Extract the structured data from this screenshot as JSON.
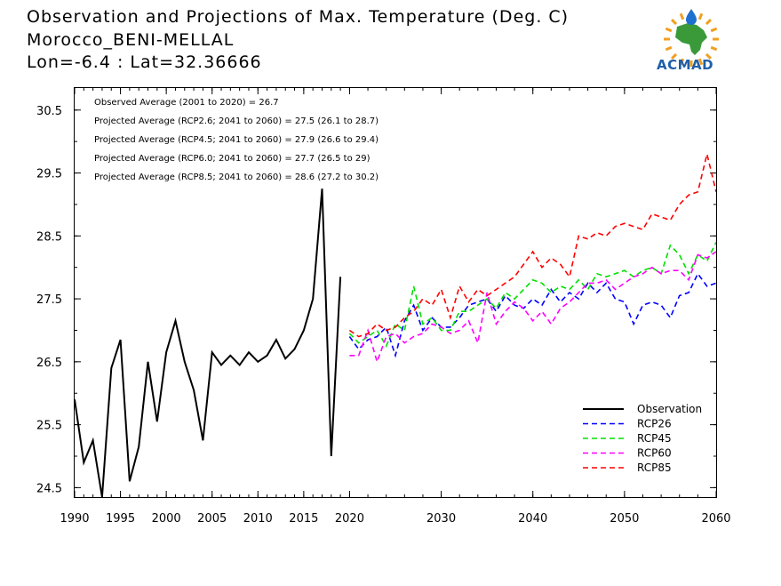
{
  "header": {
    "title_line1": "Observation and Projections of Max. Temperature (Deg. C)",
    "title_line2": "Morocco_BENI-MELLAL",
    "title_line3": "Lon=-6.4 : Lat=32.36666"
  },
  "logo": {
    "text": "ACMAD",
    "colors": {
      "africa": "#3a9a3a",
      "rays": "#f0a020",
      "drop": "#1f6fd0",
      "text": "#1f5fa8"
    }
  },
  "chart_data": {
    "type": "line",
    "xlim": [
      1990,
      2060
    ],
    "ylim": [
      24.35,
      30.85
    ],
    "x_ticks": [
      1990,
      1995,
      2000,
      2005,
      2010,
      2015,
      2020,
      2030,
      2040,
      2050,
      2060
    ],
    "y_ticks": [
      24.5,
      25.5,
      26.5,
      27.5,
      28.5,
      29.5,
      30.5
    ],
    "x_tick_labels": [
      "1990",
      "1995",
      "2000",
      "2005",
      "2010",
      "2015",
      "2020",
      "2030",
      "2040",
      "2050",
      "2060"
    ],
    "y_tick_labels": [
      "24.5",
      "25.5",
      "26.5",
      "27.5",
      "28.5",
      "29.5",
      "30.5"
    ],
    "annotations": [
      "Observed Average (2001 to 2020) = 26.7",
      "Projected Average (RCP2.6; 2041 to 2060) = 27.5 (26.1 to 28.7)",
      "Projected Average (RCP4.5; 2041 to 2060) = 27.9 (26.6 to 29.4)",
      "Projected Average (RCP6.0; 2041 to 2060) = 27.7 (26.5 to 29)",
      "Projected Average (RCP8.5; 2041 to 2060) = 28.6 (27.2 to 30.2)"
    ],
    "legend_position": "bottom-right",
    "series": [
      {
        "name": "Observation",
        "color": "#000000",
        "dash": "solid",
        "x": [
          1990,
          1991,
          1992,
          1993,
          1994,
          1995,
          1996,
          1997,
          1998,
          1999,
          2000,
          2001,
          2002,
          2003,
          2004,
          2005,
          2006,
          2007,
          2008,
          2009,
          2010,
          2011,
          2012,
          2013,
          2014,
          2015,
          2016,
          2017,
          2018,
          2019,
          2020
        ],
        "y": [
          25.9,
          24.9,
          25.25,
          24.35,
          26.4,
          26.85,
          24.6,
          25.15,
          26.5,
          25.55,
          26.65,
          27.15,
          26.5,
          26.05,
          25.25,
          26.65,
          26.45,
          26.6,
          26.45,
          26.65,
          26.5,
          26.6,
          26.85,
          26.55,
          26.7,
          27,
          27.5,
          29.25,
          25,
          27.85,
          null
        ]
      },
      {
        "name": "RCP26",
        "color": "#0000ff",
        "dash": "dashed",
        "x": [
          2020,
          2021,
          2022,
          2023,
          2024,
          2025,
          2026,
          2027,
          2028,
          2029,
          2030,
          2031,
          2032,
          2033,
          2034,
          2035,
          2036,
          2037,
          2038,
          2039,
          2040,
          2041,
          2042,
          2043,
          2044,
          2045,
          2046,
          2047,
          2048,
          2049,
          2050,
          2051,
          2052,
          2053,
          2054,
          2055,
          2056,
          2057,
          2058,
          2059,
          2060
        ],
        "y": [
          26.9,
          26.7,
          26.85,
          26.9,
          27.05,
          26.6,
          27.15,
          27.4,
          27.0,
          27.2,
          27.05,
          27.05,
          27.2,
          27.4,
          27.45,
          27.5,
          27.3,
          27.55,
          27.4,
          27.35,
          27.5,
          27.4,
          27.65,
          27.45,
          27.6,
          27.5,
          27.75,
          27.6,
          27.75,
          27.5,
          27.45,
          27.1,
          27.4,
          27.45,
          27.4,
          27.2,
          27.55,
          27.6,
          27.9,
          27.7,
          27.75
        ]
      },
      {
        "name": "RCP45",
        "color": "#00e000",
        "dash": "dashed",
        "x": [
          2020,
          2021,
          2022,
          2023,
          2024,
          2025,
          2026,
          2027,
          2028,
          2029,
          2030,
          2031,
          2032,
          2033,
          2034,
          2035,
          2036,
          2037,
          2038,
          2039,
          2040,
          2041,
          2042,
          2043,
          2044,
          2045,
          2046,
          2047,
          2048,
          2049,
          2050,
          2051,
          2052,
          2053,
          2054,
          2055,
          2056,
          2057,
          2058,
          2059,
          2060
        ],
        "y": [
          26.95,
          26.8,
          26.9,
          27.0,
          26.75,
          27.1,
          27.0,
          27.7,
          27.1,
          27.2,
          27.0,
          27.0,
          27.3,
          27.3,
          27.4,
          27.5,
          27.35,
          27.6,
          27.5,
          27.65,
          27.8,
          27.75,
          27.6,
          27.7,
          27.65,
          27.8,
          27.65,
          27.9,
          27.85,
          27.9,
          27.95,
          27.85,
          27.95,
          28.0,
          27.9,
          28.35,
          28.2,
          27.9,
          28.2,
          28.1,
          28.4
        ]
      },
      {
        "name": "RCP60",
        "color": "#ff00ff",
        "dash": "dashed",
        "x": [
          2020,
          2021,
          2022,
          2023,
          2024,
          2025,
          2026,
          2027,
          2028,
          2029,
          2030,
          2031,
          2032,
          2033,
          2034,
          2035,
          2036,
          2037,
          2038,
          2039,
          2040,
          2041,
          2042,
          2043,
          2044,
          2045,
          2046,
          2047,
          2048,
          2049,
          2050,
          2051,
          2052,
          2053,
          2054,
          2055,
          2056,
          2057,
          2058,
          2059,
          2060
        ],
        "y": [
          26.6,
          26.6,
          27.0,
          26.5,
          26.9,
          26.95,
          26.8,
          26.9,
          26.95,
          27.1,
          27.05,
          26.95,
          27.0,
          27.15,
          26.8,
          27.6,
          27.1,
          27.3,
          27.45,
          27.35,
          27.15,
          27.3,
          27.1,
          27.35,
          27.45,
          27.6,
          27.75,
          27.75,
          27.8,
          27.65,
          27.75,
          27.85,
          27.9,
          28.0,
          27.9,
          27.95,
          27.95,
          27.8,
          28.2,
          28.15,
          28.25
        ]
      },
      {
        "name": "RCP85",
        "color": "#ff0000",
        "dash": "dashed",
        "x": [
          2020,
          2021,
          2022,
          2023,
          2024,
          2025,
          2026,
          2027,
          2028,
          2029,
          2030,
          2031,
          2032,
          2033,
          2034,
          2035,
          2036,
          2037,
          2038,
          2039,
          2040,
          2041,
          2042,
          2043,
          2044,
          2045,
          2046,
          2047,
          2048,
          2049,
          2050,
          2051,
          2052,
          2053,
          2054,
          2055,
          2056,
          2057,
          2058,
          2059,
          2060
        ],
        "y": [
          27.0,
          26.9,
          26.95,
          27.1,
          27.0,
          27.05,
          27.2,
          27.3,
          27.5,
          27.4,
          27.65,
          27.2,
          27.7,
          27.45,
          27.65,
          27.55,
          27.65,
          27.75,
          27.85,
          28.05,
          28.25,
          28.0,
          28.15,
          28.05,
          27.85,
          28.5,
          28.45,
          28.55,
          28.5,
          28.65,
          28.7,
          28.65,
          28.6,
          28.85,
          28.8,
          28.75,
          29.0,
          29.15,
          29.2,
          29.8,
          29.2
        ]
      }
    ]
  }
}
